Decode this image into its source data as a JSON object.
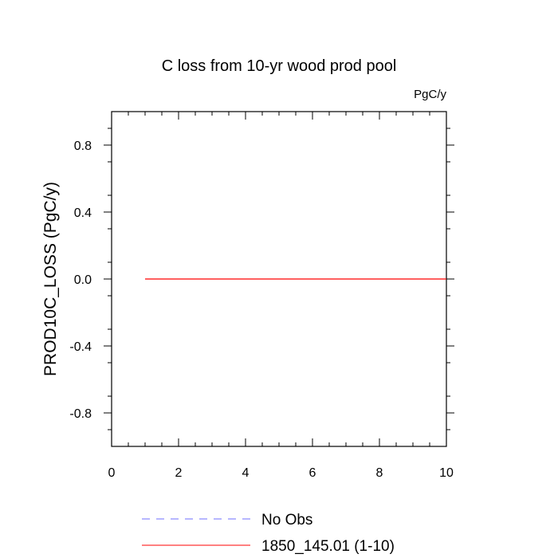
{
  "chart_data": {
    "type": "line",
    "title": "C loss from 10-yr wood prod pool",
    "units_label": "PgC/y",
    "xlabel": "",
    "ylabel": "PROD10C_LOSS  (PgC/y)",
    "xlim": [
      0,
      10
    ],
    "ylim": [
      -1,
      1
    ],
    "x_ticks": [
      0,
      2,
      4,
      6,
      8,
      10
    ],
    "x_tick_labels": [
      "0",
      "2",
      "4",
      "6",
      "8",
      "10"
    ],
    "y_ticks": [
      0.8,
      0.4,
      0.0,
      -0.4,
      -0.8
    ],
    "y_tick_labels": [
      "0.8",
      "0.4",
      "0.0",
      "-0.4",
      "-0.8"
    ],
    "grid": false,
    "legend_position": "bottom",
    "series": [
      {
        "name": "No Obs",
        "color": "#6f6fff",
        "dash": "dashed",
        "x": [],
        "y": []
      },
      {
        "name": "1850_145.01 (1-10)",
        "color": "#ff0000",
        "dash": "solid",
        "x": [
          1,
          2,
          3,
          4,
          5,
          6,
          7,
          8,
          9,
          10
        ],
        "y": [
          0,
          0,
          0,
          0,
          0,
          0,
          0,
          0,
          0,
          0
        ]
      }
    ]
  }
}
